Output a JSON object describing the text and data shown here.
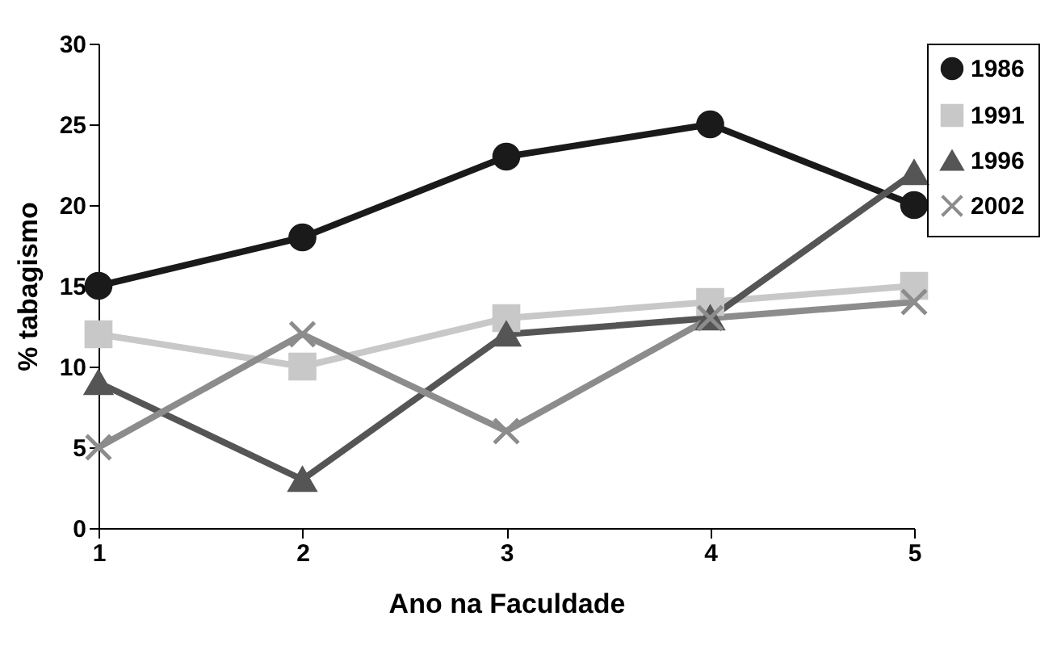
{
  "chart_data": {
    "type": "line",
    "xlabel": "Ano na Faculdade",
    "ylabel": "% tabagismo",
    "x": [
      1,
      2,
      3,
      4,
      5
    ],
    "xlim": [
      1,
      5
    ],
    "xticks": [
      1,
      2,
      3,
      4,
      5
    ],
    "ylim": [
      0,
      30
    ],
    "yticks": [
      0,
      5,
      10,
      15,
      20,
      25,
      30
    ],
    "grid": false,
    "legend": "right",
    "line_style": "solid",
    "series": [
      {
        "name": "1986",
        "color": "#1a1a1a",
        "marker": "circle",
        "values": [
          15,
          18,
          23,
          25,
          20
        ]
      },
      {
        "name": "1991",
        "color": "#c8c8c8",
        "marker": "square",
        "values": [
          12,
          10,
          13,
          14,
          15
        ]
      },
      {
        "name": "1996",
        "color": "#555555",
        "marker": "triangle",
        "values": [
          9,
          3,
          12,
          13,
          22
        ]
      },
      {
        "name": "2002",
        "color": "#8c8c8c",
        "marker": "cross",
        "values": [
          5,
          12,
          6,
          13,
          14
        ]
      }
    ]
  }
}
